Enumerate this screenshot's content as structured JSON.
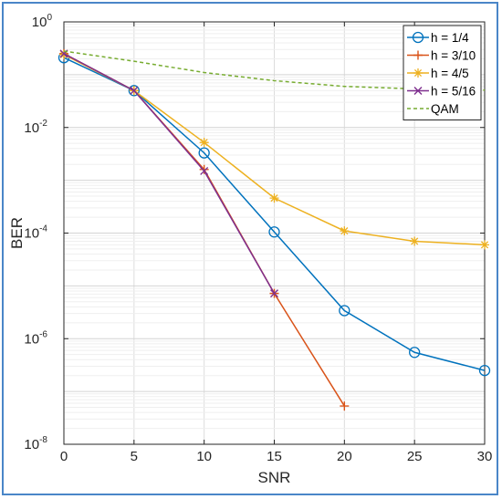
{
  "chart_data": {
    "type": "line",
    "xlabel": "SNR",
    "ylabel": "BER",
    "x_ticks": [
      0,
      5,
      10,
      15,
      20,
      25,
      30
    ],
    "xlim": [
      0,
      30
    ],
    "ylim": [
      1e-08,
      1
    ],
    "y_scale": "log",
    "y_ticks": [
      {
        "base": "10",
        "exp": "0",
        "value": 1
      },
      {
        "base": "10",
        "exp": "-2",
        "value": 0.01
      },
      {
        "base": "10",
        "exp": "-4",
        "value": 0.0001
      },
      {
        "base": "10",
        "exp": "-6",
        "value": 1e-06
      },
      {
        "base": "10",
        "exp": "-8",
        "value": 1e-08
      }
    ],
    "grid": true,
    "legend_position": "top-right",
    "series": [
      {
        "name": "h = 1/4",
        "color": "#0072BD",
        "marker": "circle",
        "style": "solid",
        "x": [
          0,
          5,
          10,
          15,
          20,
          25,
          30
        ],
        "y": [
          0.21,
          0.05,
          0.0033,
          0.000105,
          3.4e-06,
          5.5e-07,
          2.5e-07
        ]
      },
      {
        "name": "h = 3/10",
        "color": "#D95319",
        "marker": "plus",
        "style": "solid",
        "x": [
          0,
          5,
          10,
          15,
          20
        ],
        "y": [
          0.25,
          0.05,
          0.0016,
          7.2e-06,
          5.3e-08
        ]
      },
      {
        "name": "h = 4/5",
        "color": "#EDB120",
        "marker": "asterisk",
        "style": "solid",
        "x": [
          0,
          5,
          10,
          15,
          20,
          25,
          30
        ],
        "y": [
          0.24,
          0.05,
          0.0052,
          0.00046,
          0.00011,
          7e-05,
          6e-05
        ]
      },
      {
        "name": "h = 5/16",
        "color": "#7E2F8E",
        "marker": "x",
        "style": "solid",
        "x": [
          0,
          5,
          10,
          15
        ],
        "y": [
          0.25,
          0.05,
          0.0015,
          7.2e-06
        ]
      },
      {
        "name": "QAM",
        "color": "#77AC30",
        "marker": "none",
        "style": "dashed",
        "x": [
          0,
          5,
          10,
          15,
          20,
          25,
          30
        ],
        "y": [
          0.28,
          0.18,
          0.11,
          0.077,
          0.06,
          0.054,
          0.051
        ]
      }
    ]
  }
}
